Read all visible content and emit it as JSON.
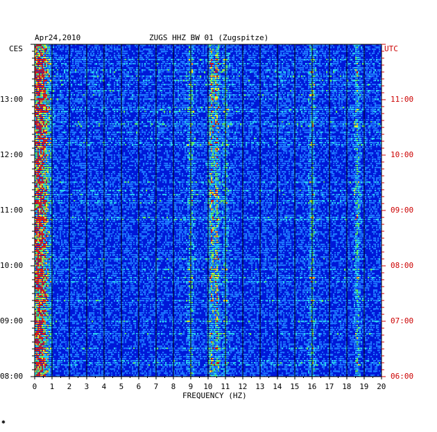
{
  "header": {
    "date": "Apr24,2010",
    "station": "ZUGS HHZ BW 01 (Zugspitze)"
  },
  "left_axis": {
    "zone": "CES",
    "color": "#000000"
  },
  "right_axis": {
    "zone": "UTC",
    "color": "#cc0000"
  },
  "colors": {
    "background": "#0018d8",
    "light_blue": "#1e78ff",
    "cyan": "#2ad0f0",
    "green": "#60f060",
    "yellow": "#f0f020",
    "orange": "#f09020",
    "red": "#e02010"
  },
  "chart_data": {
    "type": "heatmap",
    "title": "ZUGS HHZ BW 01 (Zugspitze)",
    "date": "Apr24,2010",
    "xlabel": "FREQUENCY (HZ)",
    "xlim": [
      0,
      20
    ],
    "x_ticks": [
      "0",
      "1",
      "2",
      "3",
      "4",
      "5",
      "6",
      "7",
      "8",
      "9",
      "10",
      "11",
      "12",
      "13",
      "14",
      "15",
      "16",
      "17",
      "18",
      "19",
      "20"
    ],
    "y_range_ces": [
      "08:00",
      "14:00"
    ],
    "left_ticks": [
      "08:00",
      "09:00",
      "10:00",
      "11:00",
      "12:00",
      "13:00"
    ],
    "right_ticks": [
      "06:00",
      "07:00",
      "08:00",
      "09:00",
      "10:00",
      "11:00"
    ],
    "grid": true,
    "prominent_frequency_bands_hz": [
      0.3,
      9.0,
      10.2,
      10.5,
      11.0,
      16.0,
      18.6
    ]
  }
}
